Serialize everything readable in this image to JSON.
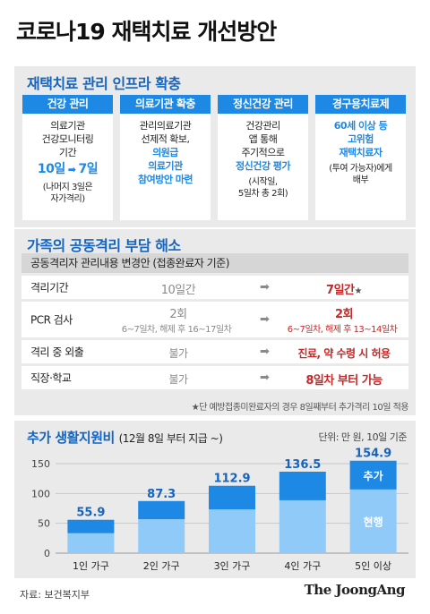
{
  "title": "코로나19 재택치료 개선방안",
  "section1": {
    "title": "재택치료 관리 인프라 확충",
    "columns": [
      {
        "header": "건강 관리",
        "lines": [
          "의료기관",
          "건강모니터링",
          "기간"
        ],
        "highlight_before": "10일",
        "highlight_arrow": "➡",
        "highlight_after": "7일",
        "notes": [
          "(나머지 3일은",
          "자가격리)"
        ]
      },
      {
        "header": "의료기관 확충",
        "lines": [
          "관리의료기관",
          "선제적 확보,"
        ],
        "blue_lines": [
          "의원급",
          "의료기관",
          "참여방안 마련"
        ]
      },
      {
        "header": "정신건강 관리",
        "lines": [
          "건강관리",
          "앱 통해",
          "주기적으로"
        ],
        "blue_lines": [
          "정신건강 평가"
        ],
        "notes": [
          "(시작일,",
          "5일차 총 2회)"
        ]
      },
      {
        "header": "경구용치료제",
        "blue_lines": [
          "60세 이상 등",
          "고위험",
          "재택치료자"
        ],
        "notes": [
          "(투여 가능자)에게",
          "배부"
        ]
      }
    ]
  },
  "section2": {
    "title": "가족의 공동격리 부담 해소",
    "subheader": "공동격리자 관리내용 변경안 (접종완료자 기준)",
    "arrow": "➡",
    "rows": [
      {
        "label": "격리기간",
        "before": "10일간",
        "after": "7일간",
        "after_mark": "★"
      },
      {
        "label": "PCR 검사",
        "before": "2회",
        "before_sub": "6~7일차, 해제 후 16~17일차",
        "after": "2회",
        "after_sub": "6~7일차, 해제 후 13~14일차"
      },
      {
        "label": "격리 중 외출",
        "before": "불가",
        "after": "진료, 약 수령 시 허용"
      },
      {
        "label": "직장·학교",
        "before": "불가",
        "after": "8일차 부터 가능"
      }
    ],
    "footnote": "★단 예방접종미완료자의 경우 8일째부터 추가격리 10일 적용"
  },
  "section3": {
    "title": "추가 생활지원비",
    "title_paren": "(12월 8일 부터 지급 ~)",
    "unit": "단위: 만 원, 10일 기준",
    "labels": {
      "added": "추가",
      "current": "현행"
    }
  },
  "chart_data": {
    "type": "bar",
    "stacked": true,
    "categories": [
      "1인 가구",
      "2인 가구",
      "3인 가구",
      "4인 가구",
      "5인 이상"
    ],
    "totals": [
      55.9,
      87.3,
      112.9,
      136.5,
      154.9
    ],
    "series": [
      {
        "name": "현행",
        "values": [
          33.4,
          56.9,
          73.3,
          88.6,
          106.7
        ]
      },
      {
        "name": "추가",
        "values": [
          22.5,
          30.4,
          39.6,
          47.9,
          48.2
        ]
      }
    ],
    "yticks": [
      0,
      50,
      100,
      150
    ],
    "ylim": [
      0,
      165
    ],
    "grid": true,
    "colors": {
      "current": "#90caf9",
      "added": "#1e88e5",
      "label": "#1565c0"
    }
  },
  "source": "자료: 보건복지부",
  "logo": "The JoongAng"
}
